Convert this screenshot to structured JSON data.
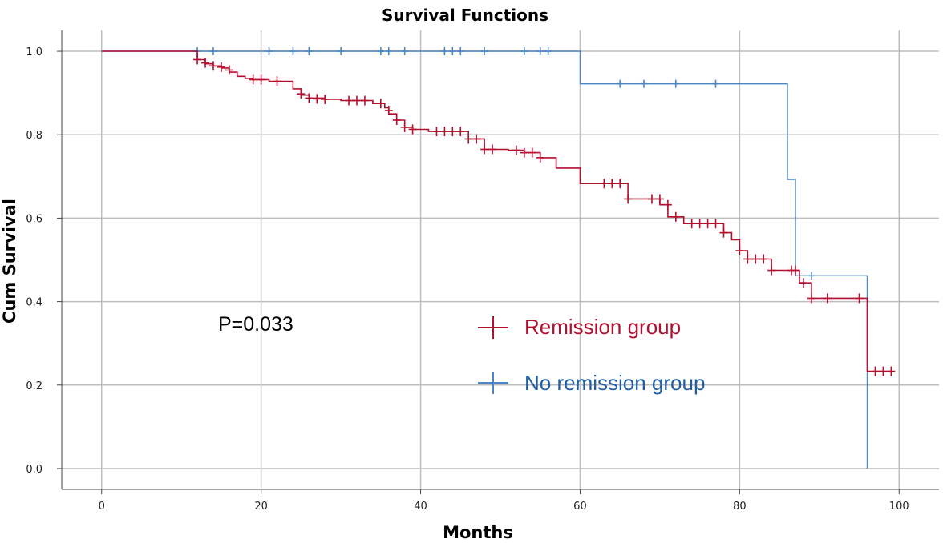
{
  "chart_data": {
    "type": "line",
    "subtype": "kaplan-meier-step",
    "title": "Survival Functions",
    "xlabel": "Months",
    "ylabel": "Cum Survival",
    "xlim": [
      -5,
      105
    ],
    "ylim": [
      -0.05,
      1.05
    ],
    "xticks": [
      0,
      20,
      40,
      60,
      80,
      100
    ],
    "yticks": [
      "0.0",
      "0.2",
      "0.4",
      "0.6",
      "0.8",
      "1.0"
    ],
    "grid": true,
    "annotation": "P=0.033",
    "colors": {
      "remission": "#b2102f",
      "no_remission": "#4a86c5",
      "grid": "#bdbdbd",
      "axis": "#444444"
    },
    "series": [
      {
        "name": "Remission group",
        "key": "remission",
        "steps": [
          [
            0,
            1.0
          ],
          [
            12,
            0.98
          ],
          [
            13,
            0.97
          ],
          [
            14,
            0.965
          ],
          [
            15,
            0.96
          ],
          [
            16,
            0.95
          ],
          [
            17,
            0.94
          ],
          [
            18,
            0.935
          ],
          [
            19,
            0.932
          ],
          [
            21,
            0.928
          ],
          [
            24,
            0.91
          ],
          [
            25,
            0.895
          ],
          [
            26,
            0.888
          ],
          [
            28,
            0.885
          ],
          [
            30,
            0.882
          ],
          [
            34,
            0.875
          ],
          [
            35.5,
            0.865
          ],
          [
            36,
            0.85
          ],
          [
            37,
            0.835
          ],
          [
            38,
            0.818
          ],
          [
            39,
            0.813
          ],
          [
            41,
            0.808
          ],
          [
            46,
            0.79
          ],
          [
            48,
            0.765
          ],
          [
            51,
            0.763
          ],
          [
            53,
            0.757
          ],
          [
            55,
            0.745
          ],
          [
            57,
            0.72
          ],
          [
            60,
            0.683
          ],
          [
            64,
            0.683
          ],
          [
            66,
            0.646
          ],
          [
            70,
            0.632
          ],
          [
            71,
            0.603
          ],
          [
            73,
            0.587
          ],
          [
            78,
            0.565
          ],
          [
            79,
            0.548
          ],
          [
            80,
            0.522
          ],
          [
            81,
            0.502
          ],
          [
            84,
            0.475
          ],
          [
            87.5,
            0.445
          ],
          [
            89,
            0.408
          ],
          [
            96,
            0.233
          ],
          [
            99,
            0.233
          ]
        ],
        "censored": [
          [
            12,
            0.98
          ],
          [
            13,
            0.972
          ],
          [
            14,
            0.965
          ],
          [
            15,
            0.962
          ],
          [
            16,
            0.955
          ],
          [
            19,
            0.932
          ],
          [
            20,
            0.932
          ],
          [
            22,
            0.928
          ],
          [
            25,
            0.898
          ],
          [
            26,
            0.888
          ],
          [
            27,
            0.886
          ],
          [
            28,
            0.885
          ],
          [
            31,
            0.882
          ],
          [
            32,
            0.882
          ],
          [
            33,
            0.882
          ],
          [
            35,
            0.875
          ],
          [
            36,
            0.858
          ],
          [
            37,
            0.835
          ],
          [
            38,
            0.818
          ],
          [
            39,
            0.813
          ],
          [
            42,
            0.808
          ],
          [
            43,
            0.808
          ],
          [
            44,
            0.808
          ],
          [
            45,
            0.808
          ],
          [
            46,
            0.79
          ],
          [
            47,
            0.79
          ],
          [
            48,
            0.765
          ],
          [
            49,
            0.765
          ],
          [
            52,
            0.763
          ],
          [
            53,
            0.757
          ],
          [
            54,
            0.757
          ],
          [
            55,
            0.745
          ],
          [
            63,
            0.683
          ],
          [
            64,
            0.683
          ],
          [
            65,
            0.683
          ],
          [
            66,
            0.646
          ],
          [
            69,
            0.646
          ],
          [
            70,
            0.646
          ],
          [
            71,
            0.632
          ],
          [
            72,
            0.603
          ],
          [
            74,
            0.587
          ],
          [
            75,
            0.587
          ],
          [
            76,
            0.587
          ],
          [
            77,
            0.587
          ],
          [
            78,
            0.565
          ],
          [
            80,
            0.522
          ],
          [
            81,
            0.502
          ],
          [
            82,
            0.502
          ],
          [
            83,
            0.502
          ],
          [
            84,
            0.475
          ],
          [
            86.5,
            0.475
          ],
          [
            87,
            0.475
          ],
          [
            88,
            0.445
          ],
          [
            89,
            0.408
          ],
          [
            91,
            0.408
          ],
          [
            95,
            0.408
          ],
          [
            97,
            0.233
          ],
          [
            98,
            0.233
          ],
          [
            99,
            0.233
          ]
        ]
      },
      {
        "name": "No remission group",
        "key": "no_remission",
        "steps": [
          [
            0,
            1.0
          ],
          [
            60,
            0.922
          ],
          [
            86,
            0.693
          ],
          [
            87,
            0.462
          ],
          [
            96,
            0.0
          ]
        ],
        "censored": [
          [
            12,
            1.0
          ],
          [
            14,
            1.0
          ],
          [
            21,
            1.0
          ],
          [
            24,
            1.0
          ],
          [
            26,
            1.0
          ],
          [
            30,
            1.0
          ],
          [
            35,
            1.0
          ],
          [
            36,
            1.0
          ],
          [
            38,
            1.0
          ],
          [
            43,
            1.0
          ],
          [
            44,
            1.0
          ],
          [
            45,
            1.0
          ],
          [
            48,
            1.0
          ],
          [
            53,
            1.0
          ],
          [
            55,
            1.0
          ],
          [
            56,
            1.0
          ],
          [
            65,
            0.922
          ],
          [
            68,
            0.922
          ],
          [
            72,
            0.922
          ],
          [
            77,
            0.922
          ],
          [
            89,
            0.462
          ]
        ]
      }
    ]
  }
}
